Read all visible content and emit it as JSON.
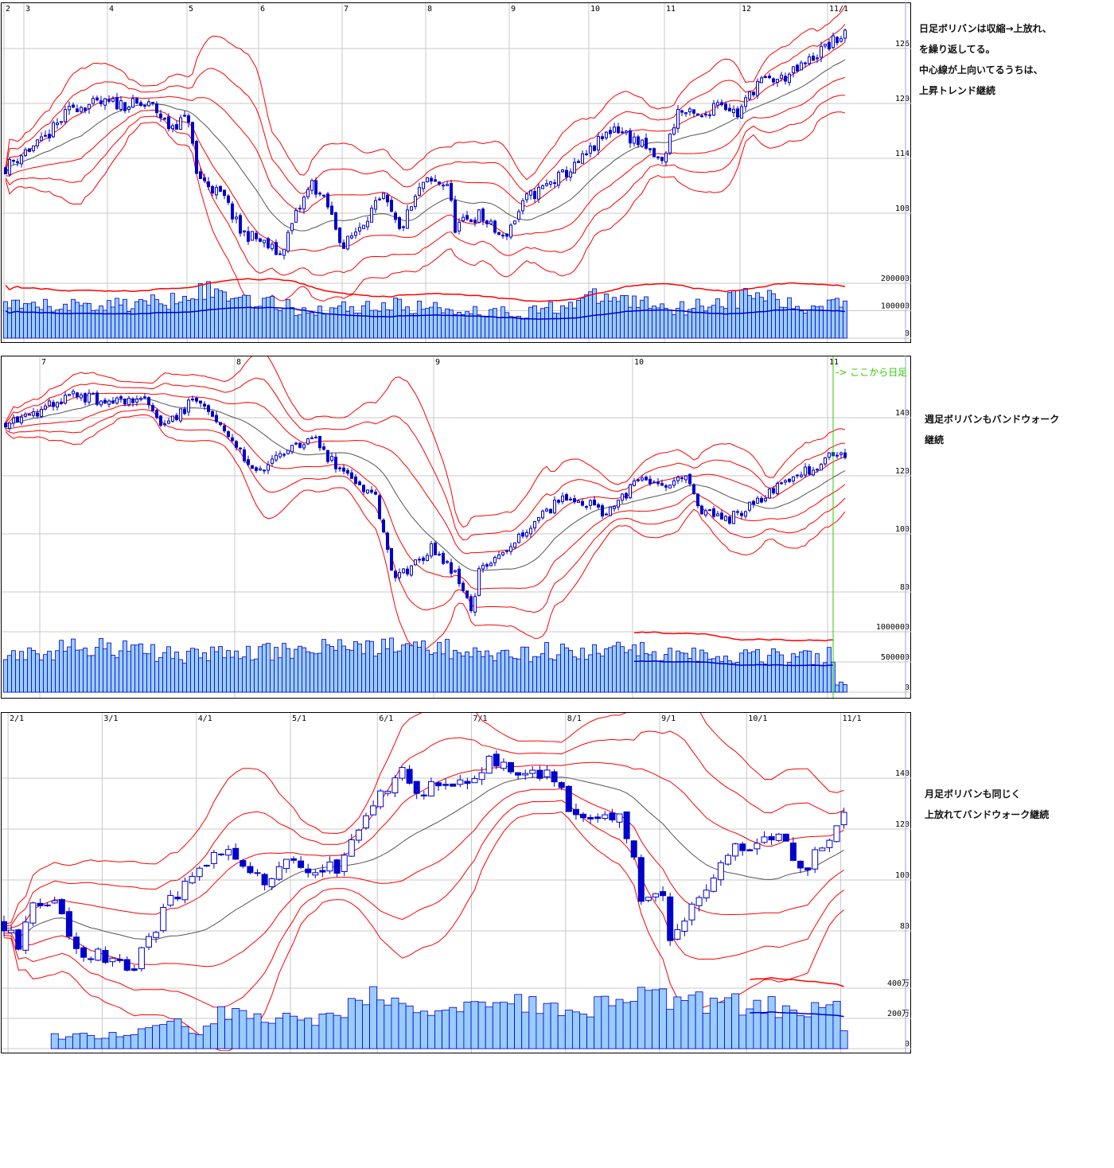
{
  "notes": {
    "daily": [
      "日足ボリバンは収縮→上放れ、",
      "を繰り返してる。",
      "中心線が上向いてるうちは、",
      "上昇トレンド継続"
    ],
    "weekly": [
      "週足ボリバンもバンドウォーク",
      "継続"
    ],
    "monthly": [
      "月足ボリバンも同じく",
      "上放れてバンドウォーク継続"
    ]
  },
  "colors": {
    "band": "#ff0000",
    "center": "#555555",
    "candle": "#0000cc",
    "volume_fill": "#99ccff",
    "volume_border": "#0000cc",
    "marker": "#33cc00"
  },
  "chart_data": [
    {
      "type": "candlestick",
      "name": "daily",
      "bars": 212,
      "overlay": "bollinger bands (center, ±1σ, ±2σ, ±3σ)",
      "price_ticks": [
        "108",
        "114",
        "120",
        "126"
      ],
      "volume_ticks": [
        "0",
        "100000",
        "200000"
      ],
      "x_labels": [
        [
          "2",
          0
        ],
        [
          "3",
          5
        ],
        [
          "4",
          26
        ],
        [
          "5",
          46
        ],
        [
          "6",
          64
        ],
        [
          "7",
          85
        ],
        [
          "8",
          106
        ],
        [
          "9",
          127
        ],
        [
          "10",
          147
        ],
        [
          "11",
          166
        ],
        [
          "12",
          185
        ],
        [
          "11/1",
          207
        ]
      ],
      "close_knots": [
        [
          0,
          113
        ],
        [
          5,
          114.8
        ],
        [
          9,
          115.7
        ],
        [
          17,
          119.7
        ],
        [
          27,
          120
        ],
        [
          37,
          119.7
        ],
        [
          41,
          117.5
        ],
        [
          46,
          118.4
        ],
        [
          48,
          112.2
        ],
        [
          55,
          109.6
        ],
        [
          59,
          106
        ],
        [
          63,
          105.2
        ],
        [
          69,
          103.5
        ],
        [
          73,
          107.8
        ],
        [
          77,
          111.3
        ],
        [
          81,
          108.7
        ],
        [
          85,
          104.3
        ],
        [
          91,
          107.8
        ],
        [
          95,
          109.6
        ],
        [
          99,
          106
        ],
        [
          105,
          111.3
        ],
        [
          111,
          111.3
        ],
        [
          113,
          106.5
        ],
        [
          119,
          107.8
        ],
        [
          125,
          105.2
        ],
        [
          131,
          109.6
        ],
        [
          137,
          111.3
        ],
        [
          143,
          113
        ],
        [
          149,
          115.7
        ],
        [
          153,
          117.5
        ],
        [
          159,
          115.7
        ],
        [
          165,
          113.5
        ],
        [
          169,
          119.2
        ],
        [
          175,
          118.3
        ],
        [
          179,
          120.5
        ],
        [
          184,
          118.8
        ],
        [
          189,
          122.3
        ],
        [
          195,
          122.7
        ],
        [
          199,
          123.6
        ],
        [
          205,
          125.8
        ],
        [
          211,
          127.6
        ]
      ],
      "volume_knots": [
        [
          0,
          110000
        ],
        [
          40,
          130000
        ],
        [
          46,
          180000
        ],
        [
          60,
          150000
        ],
        [
          75,
          100000
        ],
        [
          95,
          120000
        ],
        [
          130,
          90000
        ],
        [
          150,
          150000
        ],
        [
          170,
          110000
        ],
        [
          190,
          160000
        ],
        [
          200,
          100000
        ],
        [
          211,
          150000
        ]
      ]
    },
    {
      "type": "candlestick",
      "name": "weekly",
      "bars": 212,
      "overlay": "bollinger bands (center, ±1σ, ±2σ, ±3σ)",
      "price_ticks": [
        "80",
        "100",
        "120",
        "140"
      ],
      "volume_ticks": [
        "0",
        "500000",
        "1000000"
      ],
      "x_labels": [
        [
          "7",
          9
        ],
        [
          "8",
          58
        ],
        [
          "9",
          108
        ],
        [
          "10",
          158
        ],
        [
          "11",
          207
        ]
      ],
      "marker": {
        "label": "-> ここから日足",
        "bar": 208
      },
      "close_knots": [
        [
          0,
          138.6
        ],
        [
          9,
          142.7
        ],
        [
          17,
          148
        ],
        [
          25,
          145.5
        ],
        [
          35,
          146.8
        ],
        [
          39,
          135.9
        ],
        [
          47,
          145.5
        ],
        [
          53,
          140
        ],
        [
          59,
          127.7
        ],
        [
          63,
          120.8
        ],
        [
          69,
          126.3
        ],
        [
          77,
          134.5
        ],
        [
          81,
          126.3
        ],
        [
          87,
          119.5
        ],
        [
          93,
          112.6
        ],
        [
          97,
          86.6
        ],
        [
          101,
          86.6
        ],
        [
          107,
          94.8
        ],
        [
          113,
          86.6
        ],
        [
          117,
          72.9
        ],
        [
          119,
          86.6
        ],
        [
          125,
          94.8
        ],
        [
          131,
          101.6
        ],
        [
          139,
          111.2
        ],
        [
          143,
          112.6
        ],
        [
          151,
          107.1
        ],
        [
          159,
          118.1
        ],
        [
          165,
          115.3
        ],
        [
          171,
          119.5
        ],
        [
          175,
          108.5
        ],
        [
          181,
          104.4
        ],
        [
          187,
          109.9
        ],
        [
          193,
          115.3
        ],
        [
          199,
          119.5
        ],
        [
          207,
          126.3
        ],
        [
          211,
          127
        ]
      ],
      "volume_knots": [
        [
          0,
          550000
        ],
        [
          17,
          750000
        ],
        [
          50,
          600000
        ],
        [
          97,
          800000
        ],
        [
          130,
          650000
        ],
        [
          160,
          700000
        ],
        [
          200,
          550000
        ],
        [
          208,
          600000
        ],
        [
          209,
          150000
        ],
        [
          211,
          150000
        ]
      ]
    },
    {
      "type": "candlestick",
      "name": "monthly",
      "bars": 117,
      "overlay": "bollinger bands (center, ±1σ, ±2σ, ±3σ)",
      "price_ticks": [
        "80",
        "100",
        "120",
        "140"
      ],
      "volume_ticks": [
        "0",
        "200万",
        "400万"
      ],
      "x_labels": [
        [
          "2/1",
          1
        ],
        [
          "3/1",
          14
        ],
        [
          "4/1",
          27
        ],
        [
          "5/1",
          40
        ],
        [
          "6/1",
          52
        ],
        [
          "7/1",
          65
        ],
        [
          "8/1",
          78
        ],
        [
          "9/1",
          91
        ],
        [
          "10/1",
          103
        ],
        [
          "11/1",
          116
        ]
      ],
      "close_knots": [
        [
          0,
          83
        ],
        [
          2,
          75
        ],
        [
          4,
          89
        ],
        [
          7,
          92.5
        ],
        [
          9,
          78.4
        ],
        [
          11,
          72
        ],
        [
          14,
          70.6
        ],
        [
          18,
          66
        ],
        [
          20,
          77
        ],
        [
          23,
          91
        ],
        [
          26,
          100.3
        ],
        [
          30,
          111
        ],
        [
          33,
          105
        ],
        [
          36,
          98.8
        ],
        [
          40,
          109.7
        ],
        [
          43,
          103.4
        ],
        [
          46,
          105
        ],
        [
          48,
          117.5
        ],
        [
          52,
          133
        ],
        [
          55,
          142.5
        ],
        [
          57,
          134.7
        ],
        [
          60,
          136.3
        ],
        [
          64,
          139.4
        ],
        [
          67,
          145.6
        ],
        [
          71,
          144
        ],
        [
          76,
          141
        ],
        [
          78,
          126.9
        ],
        [
          81,
          126.9
        ],
        [
          85,
          123.8
        ],
        [
          87,
          106.6
        ],
        [
          88,
          89.4
        ],
        [
          91,
          95.6
        ],
        [
          92,
          78.4
        ],
        [
          95,
          89.4
        ],
        [
          97,
          98.8
        ],
        [
          100,
          111
        ],
        [
          103,
          112.8
        ],
        [
          108,
          117.5
        ],
        [
          109,
          106.6
        ],
        [
          111,
          105
        ],
        [
          113,
          112.8
        ],
        [
          115,
          123.8
        ],
        [
          116,
          125.3
        ]
      ],
      "volume_knots": [
        [
          0,
          0
        ],
        [
          6,
          0
        ],
        [
          7,
          800000
        ],
        [
          18,
          900000
        ],
        [
          19,
          1500000
        ],
        [
          25,
          1700000
        ],
        [
          27,
          1000000
        ],
        [
          30,
          2400000
        ],
        [
          40,
          1900000
        ],
        [
          47,
          1900000
        ],
        [
          48,
          2700000
        ],
        [
          52,
          3500000
        ],
        [
          60,
          2500000
        ],
        [
          70,
          3000000
        ],
        [
          80,
          2600000
        ],
        [
          87,
          3300000
        ],
        [
          92,
          3300000
        ],
        [
          100,
          3000000
        ],
        [
          110,
          2600000
        ],
        [
          115,
          2600000
        ],
        [
          116,
          1100000
        ]
      ]
    }
  ]
}
